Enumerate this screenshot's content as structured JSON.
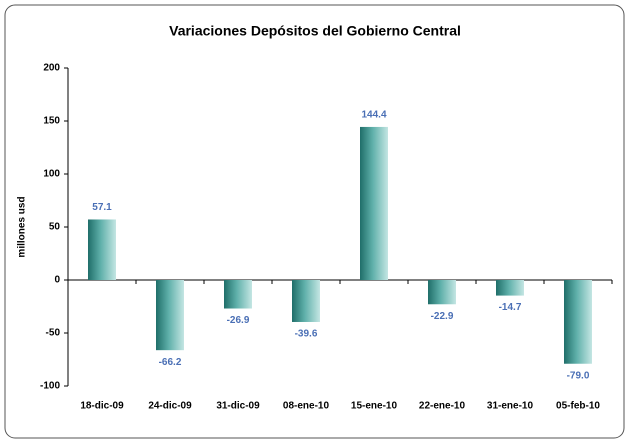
{
  "chart_data": {
    "type": "bar",
    "title": "Variaciones Depósitos del Gobierno Central",
    "y_label": "millones usd",
    "categories": [
      "18-dic-09",
      "24-dic-09",
      "31-dic-09",
      "08-ene-10",
      "15-ene-10",
      "22-ene-10",
      "31-ene-10",
      "05-feb-10"
    ],
    "values": [
      57.1,
      -66.2,
      -26.9,
      -39.6,
      144.4,
      -22.9,
      -14.7,
      -79
    ],
    "value_labels": [
      "57.1",
      "-66.2",
      "-26.9",
      "-39.6",
      "144.4",
      "-22.9",
      "-14.7",
      "-79.0"
    ],
    "color": "#2e8b86",
    "ylim": [
      -100,
      200
    ],
    "yticks": [
      -100,
      -50,
      0,
      50,
      100,
      150,
      200
    ],
    "grid": false
  }
}
